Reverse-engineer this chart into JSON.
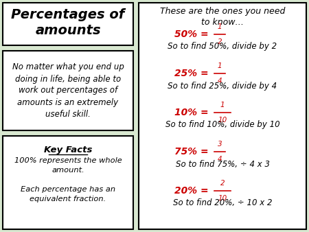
{
  "bg_color": "#d8e8d0",
  "title_text": "Percentages of\namounts",
  "mid_text": "No matter what you end up\ndoing in life, being able to\nwork out percentages of\namounts is an extremely\nuseful skill.",
  "kf_heading": "Key Facts",
  "kf_body": "100% represents the whole\namount.\n\nEach percentage has an\nequivalent fraction.",
  "right_header": "These are the ones you need\nto know…",
  "frac_data": [
    {
      "prefix": "50% = ",
      "num": "1",
      "den": "2",
      "desc": "So to find 50%, divide by 2"
    },
    {
      "prefix": "25% = ",
      "num": "1",
      "den": "4",
      "desc": "So to find 25%, divide by 4"
    },
    {
      "prefix": "10% = ",
      "num": "1",
      "den": "10",
      "desc": "So to find 10%, divide by 10"
    },
    {
      "prefix": "75% = ",
      "num": "3",
      "den": "4",
      "desc": "So to find 75%, ÷ 4 x 3"
    },
    {
      "prefix": "20% = ",
      "num": "2",
      "den": "10",
      "desc": "So to find 20%, ÷ 10 x 2"
    }
  ],
  "white": "#ffffff",
  "black": "#000000",
  "red": "#cc0000"
}
